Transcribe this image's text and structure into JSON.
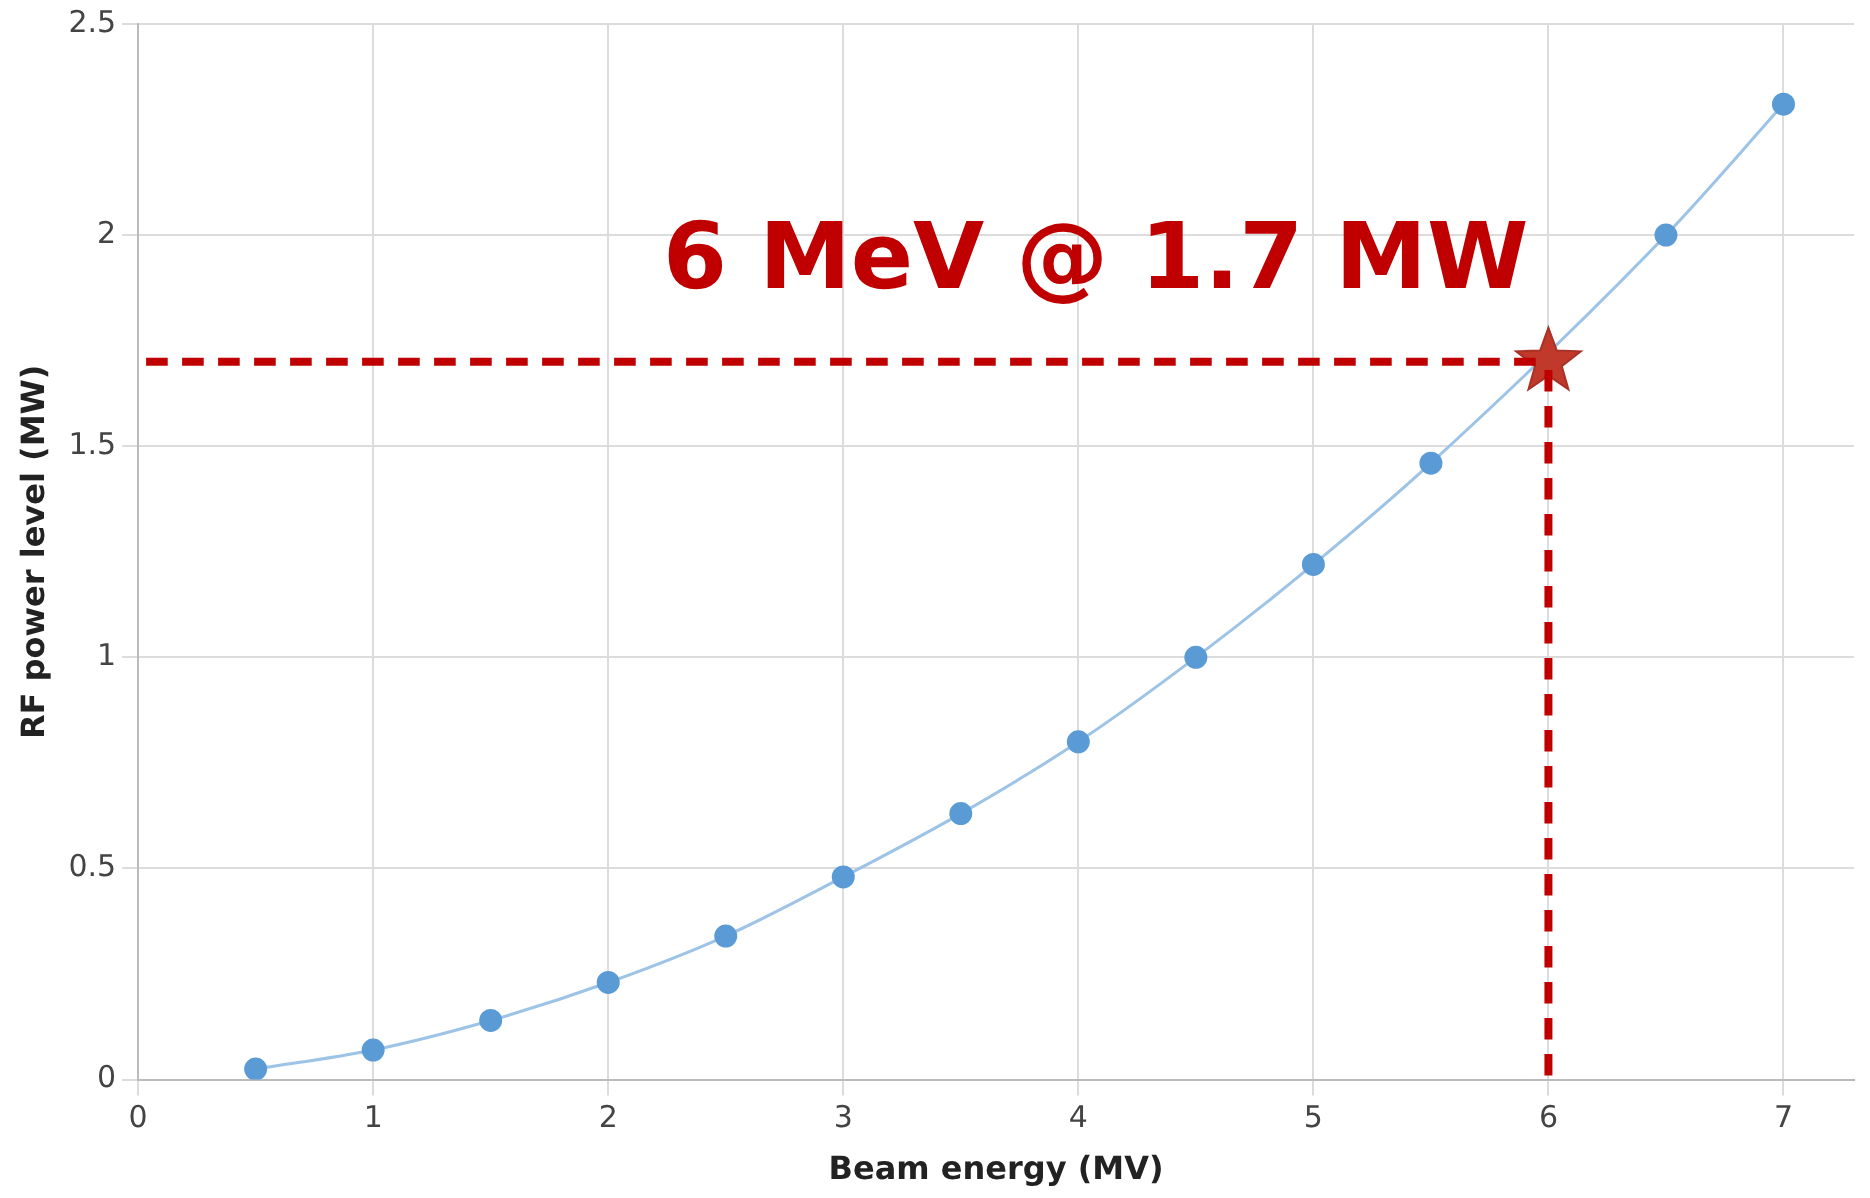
{
  "chart_data": {
    "type": "line",
    "xlabel": "Beam energy (MV)",
    "ylabel": "RF power level (MW)",
    "xlim": [
      0,
      7.3
    ],
    "xticks": [
      0,
      1,
      2,
      3,
      4,
      5,
      6,
      7
    ],
    "ylim": [
      0,
      2.5
    ],
    "yticks": [
      0,
      0.5,
      1,
      1.5,
      2,
      2.5
    ],
    "grid": true,
    "legend": false,
    "series": [
      {
        "color": "#5b9bd5",
        "marker": "circle",
        "x": [
          0.5,
          1,
          1.5,
          2,
          2.5,
          3,
          3.5,
          4,
          4.5,
          5,
          5.5,
          6.5,
          7
        ],
        "values": [
          0.025,
          0.07,
          0.14,
          0.23,
          0.34,
          0.48,
          0.63,
          0.8,
          1.0,
          1.22,
          1.46,
          2.0,
          2.31
        ]
      },
      {
        "type": "scatter",
        "color": "#c0392b",
        "marker": "star",
        "x": [
          6
        ],
        "values": [
          1.7
        ]
      }
    ],
    "ref_lines": [
      {
        "axis": "y",
        "value": 1.7,
        "color": "#c00000",
        "line_style": "dashed"
      },
      {
        "axis": "x",
        "value": 6,
        "color": "#c00000",
        "line_style": "dashed"
      }
    ],
    "annotations": [
      {
        "text": "6 MeV @ 1.7 MW",
        "x": 6,
        "y": 1.7
      }
    ]
  }
}
